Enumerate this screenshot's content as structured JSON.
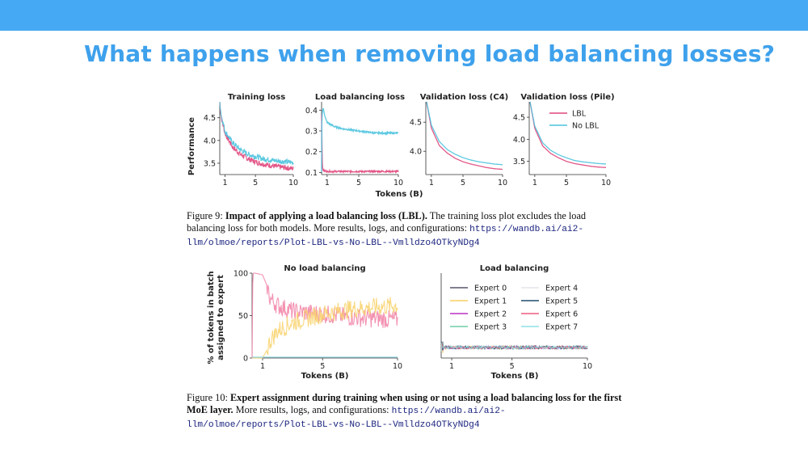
{
  "slide": {
    "title": "What happens when removing load balancing losses?",
    "accent_color": "#45a9f3",
    "title_color": "#3ea1ec"
  },
  "figure9": {
    "caption_label": "Figure 9:",
    "caption_bold": "Impact of applying a load balancing loss (LBL).",
    "caption_text": " The training loss plot excludes the load balancing loss for both models. More results, logs, and configurations: ",
    "caption_link": "https://wandb.ai/ai2-llm/olmoe/reports/Plot-LBL-vs-No-LBL--Vmlldzo4OTkyNDg4"
  },
  "figure10": {
    "caption_label": "Figure 10:",
    "caption_bold": "Expert assignment during training when using or not using a load balancing loss for the first MoE layer.",
    "caption_text": " More results, logs, and configurations: ",
    "caption_link": "https://wandb.ai/ai2-llm/olmoe/reports/Plot-LBL-vs-No-LBL--Vmlldzo4OTkyNDg4"
  },
  "chart_data": [
    {
      "type": "line",
      "title": "Training loss",
      "ylabel": "Performance",
      "xlabel": "",
      "x_ticks": [
        "1",
        "5",
        "10"
      ],
      "y_ticks": [
        "3.5",
        "4.0",
        "4.5"
      ],
      "xlim": [
        0.3,
        10
      ],
      "ylim": [
        3.25,
        4.85
      ],
      "series": [
        {
          "name": "LBL",
          "color": "#e0457b",
          "x": [
            0.3,
            0.5,
            1,
            2,
            3,
            4,
            5,
            6,
            7,
            8,
            9,
            10
          ],
          "y": [
            4.85,
            4.5,
            4.15,
            3.85,
            3.7,
            3.6,
            3.53,
            3.48,
            3.45,
            3.42,
            3.4,
            3.38
          ]
        },
        {
          "name": "No LBL",
          "color": "#4cc3de",
          "x": [
            0.3,
            0.5,
            1,
            2,
            3,
            4,
            5,
            6,
            7,
            8,
            9,
            10
          ],
          "y": [
            4.85,
            4.55,
            4.2,
            3.95,
            3.8,
            3.7,
            3.65,
            3.6,
            3.57,
            3.55,
            3.53,
            3.52
          ]
        }
      ]
    },
    {
      "type": "line",
      "title": "Load balancing loss",
      "x_ticks": [
        "1",
        "5",
        "10"
      ],
      "y_ticks": [
        "0.1",
        "0.2",
        "0.3",
        "0.4"
      ],
      "xlim": [
        0.3,
        10
      ],
      "ylim": [
        0.09,
        0.44
      ],
      "series": [
        {
          "name": "LBL",
          "color": "#e0457b",
          "x": [
            0.3,
            0.4,
            0.5,
            1,
            5,
            10
          ],
          "y": [
            0.38,
            0.12,
            0.11,
            0.105,
            0.105,
            0.105
          ]
        },
        {
          "name": "No LBL",
          "color": "#4cc3de",
          "x": [
            0.3,
            0.35,
            0.5,
            0.8,
            1,
            2,
            3,
            5,
            7,
            10
          ],
          "y": [
            0.1,
            0.38,
            0.41,
            0.36,
            0.34,
            0.32,
            0.31,
            0.3,
            0.29,
            0.29
          ]
        }
      ]
    },
    {
      "type": "line",
      "title": "Validation loss (C4)",
      "x_ticks": [
        "1",
        "5",
        "10"
      ],
      "y_ticks": [
        "4.0",
        "4.5"
      ],
      "xlim": [
        0.3,
        10
      ],
      "ylim": [
        3.6,
        4.85
      ],
      "series": [
        {
          "name": "LBL",
          "color": "#e0457b",
          "x": [
            0.4,
            1,
            2,
            3,
            4,
            5,
            6,
            7,
            8,
            9,
            10
          ],
          "y": [
            4.85,
            4.4,
            4.1,
            3.97,
            3.88,
            3.82,
            3.78,
            3.75,
            3.72,
            3.7,
            3.69
          ]
        },
        {
          "name": "No LBL",
          "color": "#4cc3de",
          "x": [
            0.4,
            1,
            2,
            3,
            4,
            5,
            6,
            7,
            8,
            9,
            10
          ],
          "y": [
            4.85,
            4.45,
            4.17,
            4.03,
            3.95,
            3.89,
            3.85,
            3.82,
            3.8,
            3.78,
            3.77
          ]
        }
      ]
    },
    {
      "type": "line",
      "title": "Validation loss (Pile)",
      "x_ticks": [
        "1",
        "5",
        "10"
      ],
      "y_ticks": [
        "3.5",
        "4.0",
        "4.5"
      ],
      "xlim": [
        0.3,
        10
      ],
      "ylim": [
        3.2,
        4.85
      ],
      "series": [
        {
          "name": "LBL",
          "color": "#e0457b",
          "x": [
            0.4,
            1,
            2,
            3,
            4,
            5,
            6,
            7,
            8,
            9,
            10
          ],
          "y": [
            4.85,
            4.25,
            3.85,
            3.68,
            3.58,
            3.5,
            3.45,
            3.42,
            3.39,
            3.37,
            3.36
          ]
        },
        {
          "name": "No LBL",
          "color": "#4cc3de",
          "x": [
            0.4,
            1,
            2,
            3,
            4,
            5,
            6,
            7,
            8,
            9,
            10
          ],
          "y": [
            4.85,
            4.3,
            3.92,
            3.75,
            3.65,
            3.58,
            3.52,
            3.49,
            3.47,
            3.45,
            3.44
          ]
        }
      ],
      "legend_placement": "top-right"
    },
    {
      "type": "line",
      "title": "No load balancing",
      "xlabel": "Tokens (B)",
      "ylabel": "% of tokens in batch assigned to expert",
      "x_ticks": [
        "1",
        "5",
        "10"
      ],
      "y_ticks": [
        "0",
        "50",
        "100"
      ],
      "xlim": [
        0.3,
        10
      ],
      "ylim": [
        0,
        100
      ],
      "series": [
        {
          "color": "#f286a8",
          "x": [
            0.3,
            0.35,
            0.5,
            1,
            1.3,
            1.5,
            2,
            3,
            5,
            7,
            10
          ],
          "y": [
            0,
            100,
            100,
            98,
            85,
            70,
            62,
            55,
            52,
            48,
            45
          ]
        },
        {
          "color": "#f8d472",
          "x": [
            0.3,
            1,
            1.3,
            1.5,
            2,
            3,
            5,
            7,
            10
          ],
          "y": [
            0,
            0,
            10,
            20,
            32,
            42,
            52,
            58,
            62
          ]
        },
        {
          "color": "#7dd3e0",
          "x": [
            0.3,
            10
          ],
          "y": [
            1,
            1
          ]
        }
      ]
    },
    {
      "type": "line",
      "title": "Load balancing",
      "xlabel": "Tokens (B)",
      "x_ticks": [
        "1",
        "5",
        "10"
      ],
      "xlim": [
        0.3,
        10
      ],
      "ylim": [
        0,
        100
      ],
      "legend_placement": "top",
      "series": [
        {
          "name": "Expert 0",
          "color": "#55556b",
          "y_level": 12.5
        },
        {
          "name": "Expert 1",
          "color": "#f8cf62",
          "y_level": 12.5
        },
        {
          "name": "Expert 2",
          "color": "#b830c4",
          "y_level": 12.5
        },
        {
          "name": "Expert 3",
          "color": "#6fcfa8",
          "y_level": 12.5
        },
        {
          "name": "Expert 4",
          "color": "#e6e6ec",
          "y_level": 12.5
        },
        {
          "name": "Expert 5",
          "color": "#1f4e6e",
          "y_level": 12.5
        },
        {
          "name": "Expert 6",
          "color": "#ee5b7e",
          "y_level": 12.5
        },
        {
          "name": "Expert 7",
          "color": "#8fe0e8",
          "y_level": 12.5
        }
      ]
    }
  ],
  "shared_labels": {
    "tokens_b": "Tokens (B)",
    "lbl": "LBL",
    "no_lbl": "No LBL"
  }
}
